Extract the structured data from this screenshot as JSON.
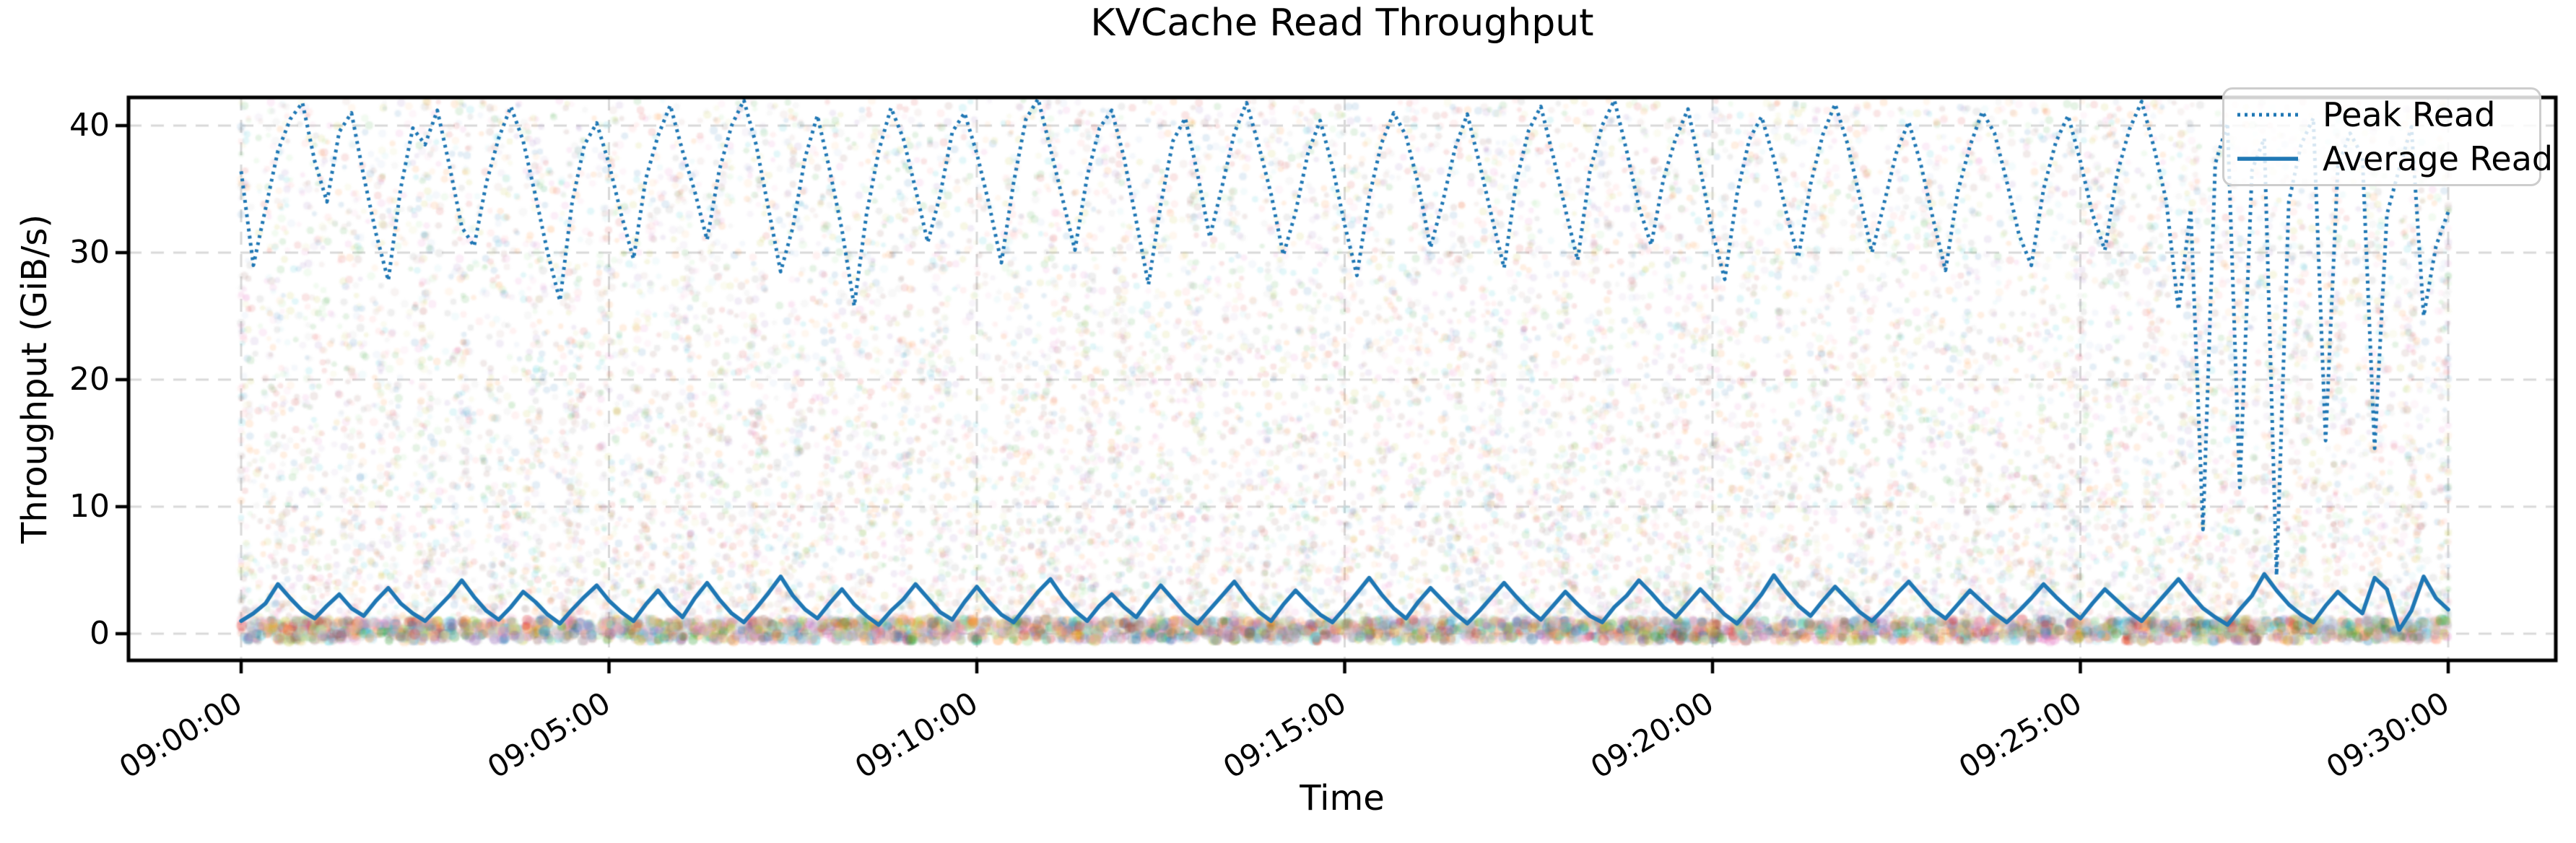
{
  "chart_data": {
    "type": "line",
    "title": "KVCache Read Throughput",
    "xlabel": "Time",
    "ylabel": "Throughput (GiB/s)",
    "x_ticks": [
      {
        "t": 0,
        "label": "09:00:00"
      },
      {
        "t": 300,
        "label": "09:05:00"
      },
      {
        "t": 600,
        "label": "09:10:00"
      },
      {
        "t": 900,
        "label": "09:15:00"
      },
      {
        "t": 1200,
        "label": "09:20:00"
      },
      {
        "t": 1500,
        "label": "09:25:00"
      },
      {
        "t": 1800,
        "label": "09:30:00"
      }
    ],
    "y_ticks": [
      0,
      10,
      20,
      30,
      40
    ],
    "ylim": [
      -2.2,
      42.3
    ],
    "x_range_s": [
      0,
      1800
    ],
    "sample_step_s": 10,
    "grid": {
      "color": "#d9d9d9",
      "dash": [
        18,
        13
      ],
      "width": 3
    },
    "axis_color": "#000000",
    "series": [
      {
        "name": "Peak Read",
        "style": "dotted",
        "color": "#1f77b4",
        "values": [
          36.4,
          29.0,
          33.5,
          38.0,
          40.5,
          41.8,
          37.2,
          34.0,
          39.5,
          41.0,
          36.0,
          31.5,
          27.8,
          35.0,
          39.8,
          38.5,
          41.2,
          36.8,
          32.0,
          30.5,
          35.5,
          39.0,
          41.5,
          38.8,
          34.5,
          30.0,
          26.2,
          34.0,
          38.5,
          40.2,
          37.0,
          33.0,
          29.5,
          35.8,
          39.2,
          41.6,
          38.0,
          34.8,
          31.0,
          36.5,
          40.0,
          42.0,
          38.5,
          33.5,
          28.5,
          32.0,
          37.5,
          40.8,
          36.5,
          31.8,
          25.8,
          33.0,
          38.0,
          41.4,
          39.0,
          35.0,
          30.8,
          34.5,
          39.5,
          41.0,
          37.8,
          33.8,
          29.2,
          35.5,
          40.5,
          42.1,
          38.2,
          34.2,
          30.2,
          36.0,
          39.8,
          41.2,
          37.5,
          32.5,
          27.5,
          33.8,
          38.8,
          40.6,
          36.2,
          31.2,
          35.2,
          39.4,
          41.8,
          38.4,
          34.6,
          29.8,
          33.2,
          37.8,
          40.4,
          36.8,
          32.2,
          28.2,
          34.4,
          38.6,
          41.0,
          39.2,
          35.4,
          30.4,
          34.0,
          38.2,
          40.9,
          37.0,
          32.8,
          28.8,
          35.6,
          39.6,
          41.5,
          37.6,
          33.4,
          29.4,
          36.4,
          40.0,
          42.0,
          38.0,
          33.6,
          30.6,
          35.8,
          39.0,
          41.3,
          36.6,
          31.6,
          27.9,
          34.6,
          38.9,
          40.7,
          37.4,
          33.2,
          29.6,
          35.4,
          39.3,
          41.7,
          38.6,
          34.4,
          30.0,
          33.9,
          37.9,
          40.3,
          36.9,
          32.6,
          28.6,
          34.8,
          38.4,
          41.1,
          39.4,
          35.6,
          31.4,
          29.0,
          35.0,
          38.7,
          40.8,
          37.2,
          33.0,
          30.2,
          36.2,
          39.7,
          41.9,
          38.3,
          34.1,
          25.5,
          33.4,
          8.2,
          37.0,
          40.2,
          11.5,
          36.5,
          39.0,
          4.6,
          34.0,
          38.5,
          40.6,
          15.2,
          36.8,
          39.4,
          37.6,
          14.6,
          33.0,
          36.6,
          39.9,
          25.0,
          30.5,
          33.2
        ]
      },
      {
        "name": "Average Read",
        "style": "solid",
        "color": "#1f77b4",
        "values": [
          1.0,
          1.6,
          2.4,
          3.9,
          2.8,
          1.8,
          1.2,
          2.2,
          3.1,
          2.0,
          1.4,
          2.6,
          3.6,
          2.4,
          1.6,
          1.0,
          2.0,
          3.0,
          4.2,
          2.9,
          1.8,
          1.1,
          2.1,
          3.3,
          2.5,
          1.5,
          0.8,
          1.9,
          2.9,
          3.8,
          2.6,
          1.7,
          1.0,
          2.3,
          3.4,
          2.2,
          1.3,
          2.8,
          4.0,
          2.7,
          1.6,
          0.9,
          2.0,
          3.2,
          4.5,
          3.0,
          1.9,
          1.2,
          2.4,
          3.5,
          2.3,
          1.4,
          0.7,
          1.8,
          2.7,
          3.9,
          2.8,
          1.7,
          1.1,
          2.5,
          3.7,
          2.5,
          1.5,
          0.9,
          2.1,
          3.3,
          4.3,
          2.9,
          1.8,
          1.0,
          2.2,
          3.1,
          2.1,
          1.3,
          2.6,
          3.8,
          2.7,
          1.6,
          0.8,
          1.9,
          3.0,
          4.1,
          2.8,
          1.7,
          1.0,
          2.3,
          3.4,
          2.4,
          1.5,
          0.9,
          2.0,
          3.2,
          4.4,
          3.1,
          2.0,
          1.2,
          2.5,
          3.6,
          2.6,
          1.6,
          0.8,
          1.8,
          2.9,
          4.0,
          2.9,
          1.9,
          1.1,
          2.2,
          3.3,
          2.3,
          1.4,
          0.9,
          2.1,
          3.0,
          4.2,
          3.2,
          2.1,
          1.3,
          2.4,
          3.5,
          2.5,
          1.5,
          0.8,
          1.9,
          3.1,
          4.6,
          3.3,
          2.2,
          1.4,
          2.6,
          3.7,
          2.7,
          1.7,
          1.0,
          2.0,
          3.1,
          4.1,
          3.0,
          1.9,
          1.2,
          2.3,
          3.4,
          2.5,
          1.6,
          0.9,
          1.8,
          2.8,
          3.9,
          2.9,
          2.0,
          1.2,
          2.4,
          3.5,
          2.6,
          1.7,
          1.0,
          2.1,
          3.2,
          4.3,
          3.1,
          2.0,
          1.3,
          0.7,
          1.9,
          3.0,
          4.7,
          3.4,
          2.3,
          1.5,
          0.9,
          2.2,
          3.3,
          2.4,
          1.6,
          4.4,
          3.5,
          0.3,
          1.8,
          4.5,
          2.8,
          1.9
        ]
      }
    ],
    "background_scatter": {
      "description": "dense faint multicolor noise dots filling the plot, bottom-weighted, with a dense opaque band hugging zero",
      "n": 16000,
      "alpha": 0.12,
      "y_max": 42.0,
      "y_pow": 1.5,
      "stripe_fraction": 0.4,
      "stripe_spacing_s": 30,
      "stripe_sigma_s": 4,
      "band": {
        "n": 3200,
        "alpha": 0.3,
        "y_range": [
          -0.55,
          1.1
        ]
      },
      "seed": 42,
      "palette": [
        "#1f77b4",
        "#ff7f0e",
        "#2ca02c",
        "#d62728",
        "#9467bd",
        "#8c564b",
        "#e377c2",
        "#7f7f7f",
        "#bcbd22",
        "#17becf",
        "#aec7e8",
        "#ffbb78",
        "#98df8a",
        "#ff9896",
        "#c5b0d5",
        "#c49c94",
        "#f7b6d2",
        "#c7c7c7",
        "#dbdb8d",
        "#9edae5"
      ]
    },
    "legend_position": "upper right"
  }
}
